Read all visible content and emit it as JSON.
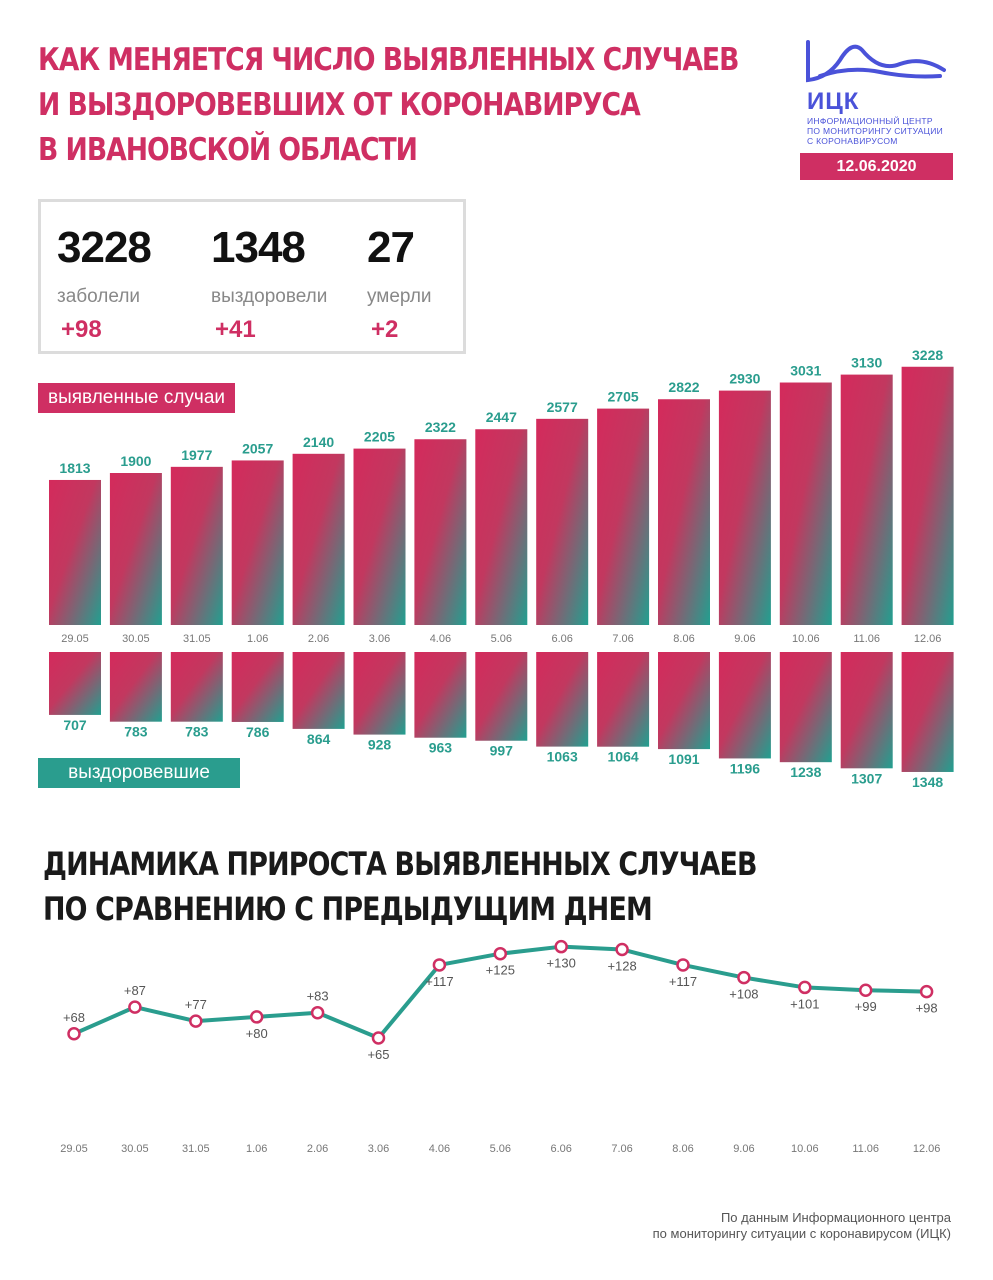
{
  "header": {
    "title_lines": [
      "КАК МЕНЯЕТСЯ ЧИСЛО ВЫЯВЛЕННЫХ СЛУЧАЕВ",
      "И ВЫЗДОРОВЕВШИХ ОТ КОРОНАВИРУСА",
      "В ИВАНОВСКОЙ ОБЛАСТИ"
    ]
  },
  "logo": {
    "abbr": "ИЦК",
    "sub_lines": [
      "Информационный центр",
      "по мониторингу ситуации",
      "с коронавирусом"
    ]
  },
  "date": "12.06.2020",
  "stats": {
    "cases": {
      "value": "3228",
      "label": "заболели",
      "delta": "+98"
    },
    "recovered": {
      "value": "1348",
      "label": "выздоровели",
      "delta": "+41"
    },
    "deaths": {
      "value": "27",
      "label": "умерли",
      "delta": "+2"
    }
  },
  "labels": {
    "cases_tag": "выявленные случаи",
    "recovered_tag": "выздоровевшие",
    "growth_title_lines": [
      "ДИНАМИКА ПРИРОСТА ВЫЯВЛЕННЫХ СЛУЧАЕВ",
      "ПО СРАВНЕНИЮ С ПРЕДЫДУЩИМ ДНЕМ"
    ]
  },
  "colors": {
    "pink": "#cf2f63",
    "teal": "#2a9d8e",
    "navy": "#4a52d9"
  },
  "chart_data": [
    {
      "type": "bar",
      "categories": [
        "29.05",
        "30.05",
        "31.05",
        "1.06",
        "2.06",
        "3.06",
        "4.06",
        "5.06",
        "6.06",
        "7.06",
        "8.06",
        "9.06",
        "10.06",
        "11.06",
        "12.06"
      ],
      "series": [
        {
          "name": "выявленные случаи",
          "values": [
            1813,
            1900,
            1977,
            2057,
            2140,
            2205,
            2322,
            2447,
            2577,
            2705,
            2822,
            2930,
            3031,
            3130,
            3228
          ]
        },
        {
          "name": "выздоровевшие",
          "values": [
            707,
            783,
            783,
            786,
            864,
            928,
            963,
            997,
            1063,
            1064,
            1091,
            1196,
            1238,
            1307,
            1348
          ]
        }
      ]
    },
    {
      "type": "line",
      "categories": [
        "29.05",
        "30.05",
        "31.05",
        "1.06",
        "2.06",
        "3.06",
        "4.06",
        "5.06",
        "6.06",
        "7.06",
        "8.06",
        "9.06",
        "10.06",
        "11.06",
        "12.06"
      ],
      "values": [
        68,
        87,
        77,
        80,
        83,
        65,
        117,
        125,
        130,
        128,
        117,
        108,
        101,
        99,
        98
      ],
      "value_labels": [
        "+68",
        "+87",
        "+77",
        "+80",
        "+83",
        "+65",
        "+117",
        "+125",
        "+130",
        "+128",
        "+117",
        "+108",
        "+101",
        "+99",
        "+98"
      ]
    }
  ],
  "footer_lines": [
    "По данным Информационного центра",
    "по мониторингу ситуации с коронавирусом (ИЦК)"
  ]
}
